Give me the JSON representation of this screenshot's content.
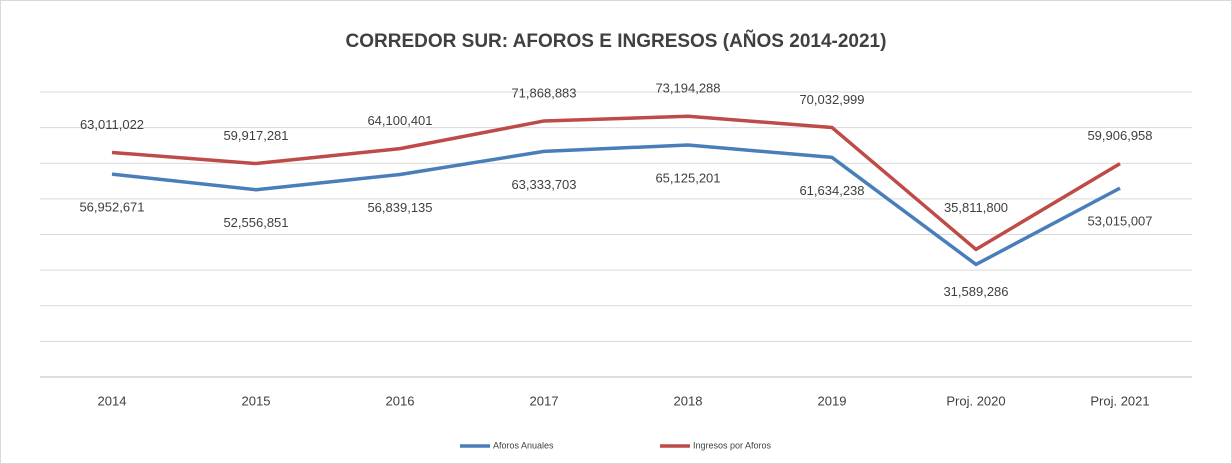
{
  "chart_data": {
    "type": "line",
    "title": "CORREDOR SUR:  AFOROS E INGRESOS (AÑOS 2014-2021)",
    "categories": [
      "2014",
      "2015",
      "2016",
      "2017",
      "2018",
      "2019",
      "Proj. 2020",
      "Proj. 2021"
    ],
    "series": [
      {
        "name": "Aforos Anuales",
        "color": "#4a7ebb",
        "values": [
          56952671,
          52556851,
          56839135,
          63333703,
          65125201,
          61634238,
          31589286,
          53015007
        ],
        "value_labels": [
          "56,952,671",
          "52,556,851",
          "56,839,135",
          "63,333,703",
          "65,125,201",
          "61,634,238",
          "31,589,286",
          "53,015,007"
        ]
      },
      {
        "name": "Ingresos por Aforos",
        "color": "#be4b48",
        "values": [
          63011022,
          59917281,
          64100401,
          71868883,
          73194288,
          70032999,
          35811800,
          59906958
        ],
        "value_labels": [
          "63,011,022",
          "59,917,281",
          "64,100,401",
          "71,868,883",
          "73,194,288",
          "70,032,999",
          "35,811,800",
          "59,906,958"
        ]
      }
    ],
    "ylim": [
      0,
      80000000
    ],
    "yticks": [
      0,
      10000000,
      20000000,
      30000000,
      40000000,
      50000000,
      60000000,
      70000000,
      80000000
    ],
    "grid": true,
    "legend": "bottom"
  }
}
